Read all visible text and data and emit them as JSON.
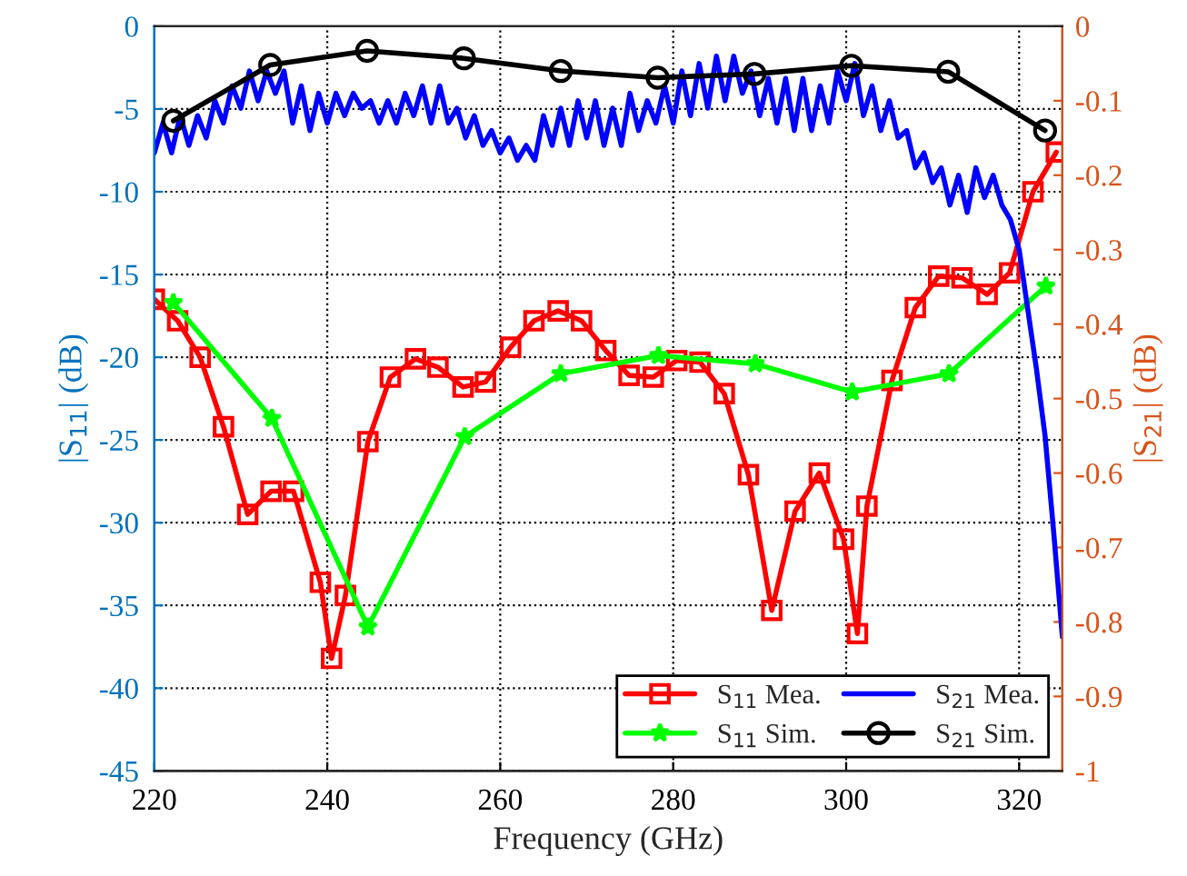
{
  "chart_data": {
    "type": "line",
    "xlabel": "Frequency (GHz)",
    "ylabel": "|S$_{11}$| (dB)",
    "y2label": "|S$_{21}$| (dB)",
    "xlim": [
      220,
      325
    ],
    "xticks": [
      220,
      240,
      260,
      280,
      300,
      320
    ],
    "ylim": [
      -45,
      0
    ],
    "yticks": [
      -45,
      -40,
      -35,
      -30,
      -25,
      -20,
      -15,
      -10,
      -5,
      0
    ],
    "y2lim": [
      -1,
      0
    ],
    "y2ticks": [
      -1,
      -0.9,
      -0.8,
      -0.7,
      -0.6,
      -0.5,
      -0.4,
      -0.3,
      -0.2,
      -0.1,
      0
    ],
    "grid": true,
    "legend": "bottom right",
    "series": [
      {
        "name": "S$_{11}$ Mea.",
        "color": "#ff0000",
        "marker": "square",
        "x": [
          220,
          222.7,
          225.3,
          228,
          230.8,
          233.5,
          236.1,
          239.2,
          240.5,
          242.1,
          244.7,
          247.3,
          250.2,
          252.8,
          255.7,
          258.3,
          261.2,
          263.9,
          266.7,
          269.4,
          272.2,
          274.9,
          277.7,
          280.4,
          283.1,
          285.9,
          288.7,
          291.4,
          294.1,
          296.9,
          299.7,
          301.3,
          302.4,
          305.3,
          308,
          310.7,
          313.4,
          316.3,
          318.9,
          321.6,
          324.3
        ],
        "values": [
          -16.5,
          -17.8,
          -20,
          -24.2,
          -29.5,
          -28.1,
          -28.1,
          -33.6,
          -38.2,
          -34.4,
          -25.1,
          -21.2,
          -20.1,
          -20.6,
          -21.8,
          -21.5,
          -19.4,
          -17.8,
          -17.2,
          -17.8,
          -19.6,
          -21.1,
          -21.2,
          -20.2,
          -20.3,
          -22.2,
          -27.1,
          -35.3,
          -29.3,
          -27,
          -31,
          -36.7,
          -29,
          -21.4,
          -17,
          -15.1,
          -15.2,
          -16.2,
          -14.9,
          -10,
          -7.6
        ]
      },
      {
        "name": "S$_{11}$ Sim.",
        "color": "#00ff00",
        "marker": "star",
        "x": [
          222.2,
          233.6,
          244.7,
          255.9,
          267,
          278.3,
          289.5,
          300.7,
          311.9,
          323.1
        ],
        "values": [
          -16.7,
          -23.7,
          -36.3,
          -24.8,
          -21,
          -19.9,
          -20.4,
          -22.1,
          -21,
          -15.7
        ]
      },
      {
        "name": "S$_{21}$ Mea.",
        "color": "#0000ff",
        "marker": "none",
        "axis": "y2",
        "x": [
          220,
          221,
          222,
          223,
          224,
          225,
          226,
          227,
          228,
          229,
          230,
          231,
          232,
          233,
          234,
          235,
          236,
          237,
          238,
          239,
          240,
          241,
          242,
          243,
          244,
          245,
          246,
          247,
          248,
          249,
          250,
          251,
          252,
          253,
          254,
          255,
          256,
          257,
          258,
          259,
          260,
          261,
          262,
          263,
          264,
          265,
          266,
          267,
          268,
          269,
          270,
          271,
          272,
          273,
          274,
          275,
          276,
          277,
          278,
          279,
          280,
          281,
          282,
          283,
          284,
          285,
          286,
          287,
          288,
          289,
          290,
          291,
          292,
          293,
          294,
          295,
          296,
          297,
          298,
          299,
          300,
          301,
          302,
          303,
          304,
          305,
          306,
          307,
          308,
          309,
          310,
          311,
          312,
          313,
          314,
          315,
          316,
          317,
          318,
          319,
          320,
          321,
          322,
          323,
          324,
          325
        ],
        "values": [
          -0.17,
          -0.13,
          -0.17,
          -0.12,
          -0.16,
          -0.12,
          -0.15,
          -0.1,
          -0.13,
          -0.08,
          -0.11,
          -0.06,
          -0.1,
          -0.06,
          -0.09,
          -0.06,
          -0.13,
          -0.08,
          -0.14,
          -0.09,
          -0.13,
          -0.09,
          -0.12,
          -0.09,
          -0.11,
          -0.1,
          -0.13,
          -0.1,
          -0.13,
          -0.09,
          -0.12,
          -0.08,
          -0.13,
          -0.08,
          -0.13,
          -0.11,
          -0.15,
          -0.12,
          -0.16,
          -0.14,
          -0.17,
          -0.15,
          -0.18,
          -0.16,
          -0.18,
          -0.12,
          -0.16,
          -0.11,
          -0.16,
          -0.1,
          -0.15,
          -0.1,
          -0.16,
          -0.11,
          -0.16,
          -0.09,
          -0.14,
          -0.1,
          -0.13,
          -0.08,
          -0.13,
          -0.06,
          -0.12,
          -0.05,
          -0.11,
          -0.04,
          -0.1,
          -0.04,
          -0.09,
          -0.06,
          -0.12,
          -0.07,
          -0.13,
          -0.07,
          -0.14,
          -0.07,
          -0.14,
          -0.08,
          -0.13,
          -0.06,
          -0.1,
          -0.05,
          -0.12,
          -0.08,
          -0.14,
          -0.1,
          -0.15,
          -0.14,
          -0.19,
          -0.17,
          -0.21,
          -0.19,
          -0.24,
          -0.2,
          -0.25,
          -0.19,
          -0.23,
          -0.2,
          -0.24,
          -0.26,
          -0.3,
          -0.38,
          -0.46,
          -0.55,
          -0.68,
          -0.82
        ]
      },
      {
        "name": "S$_{21}$ Sim.",
        "color": "#000000",
        "marker": "circle",
        "axis": "y2",
        "x": [
          222.2,
          233.4,
          244.6,
          255.8,
          267,
          278.2,
          289.4,
          300.6,
          311.8,
          323
        ],
        "values": [
          -0.127,
          -0.052,
          -0.033,
          -0.043,
          -0.06,
          -0.069,
          -0.064,
          -0.053,
          -0.061,
          -0.14
        ]
      }
    ]
  }
}
